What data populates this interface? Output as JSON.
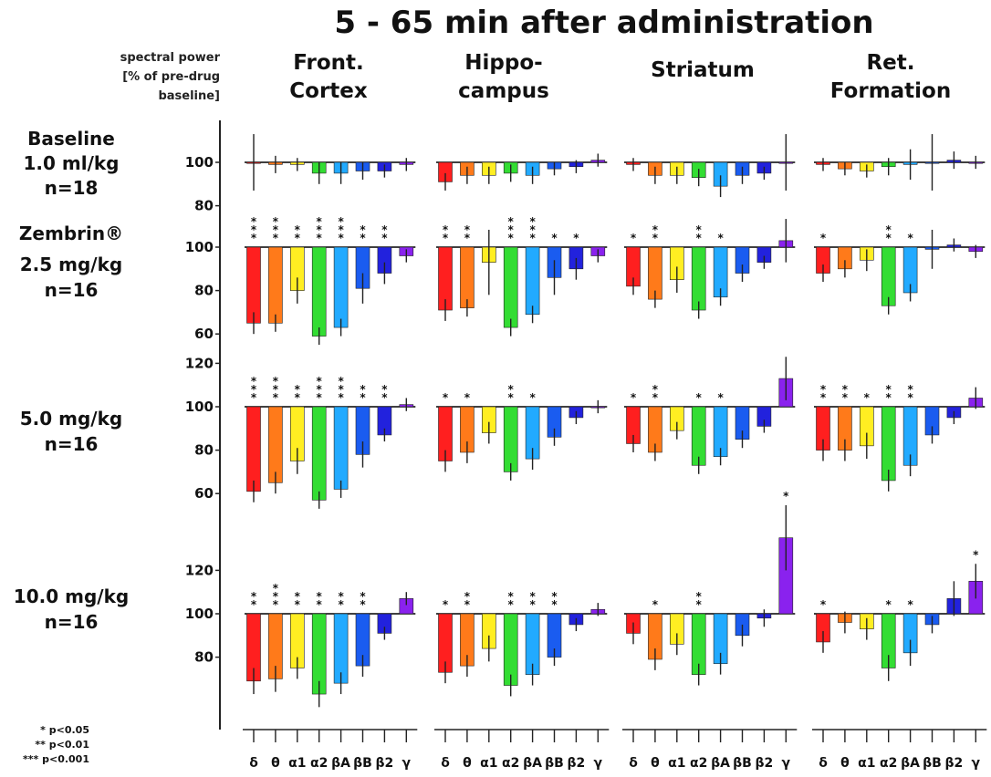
{
  "chart_data": {
    "type": "bar",
    "title": "5 - 65 min after administration",
    "ylabel": [
      "spectral power",
      "[% of pre-drug",
      "baseline]"
    ],
    "regions": [
      [
        "Front.",
        "Cortex"
      ],
      [
        "Hippo-",
        "campus"
      ],
      [
        "Striatum"
      ],
      [
        "Ret.",
        "Formation"
      ]
    ],
    "bands": [
      "δ",
      "θ",
      "α1",
      "α2",
      "βA",
      "βB",
      "β2",
      "γ"
    ],
    "band_colors": [
      "#ff1f1f",
      "#ff7a1a",
      "#ffee22",
      "#33dd33",
      "#22aaff",
      "#1a5cf0",
      "#2222dd",
      "#8a22ee"
    ],
    "rows": [
      {
        "label": [
          "Baseline",
          "1.0 ml/kg",
          "n=18"
        ],
        "ticks": [
          100,
          80
        ],
        "values": [
          [
            100,
            99,
            99,
            95,
            95,
            96,
            96,
            99
          ],
          [
            91,
            94,
            94,
            95,
            94,
            97,
            98,
            101
          ],
          [
            99,
            94,
            94,
            93,
            89,
            94,
            95,
            100
          ],
          [
            99,
            97,
            96,
            98,
            99,
            100,
            101,
            100
          ]
        ],
        "errors": [
          [
            13,
            4,
            3,
            5,
            5,
            4,
            3,
            3
          ],
          [
            4,
            4,
            4,
            4,
            4,
            3,
            3,
            3
          ],
          [
            3,
            4,
            4,
            4,
            5,
            4,
            3,
            13
          ],
          [
            3,
            3,
            3,
            4,
            7,
            13,
            4,
            3
          ]
        ],
        "sig": [
          [
            "",
            "",
            "",
            "",
            "",
            "",
            "",
            ""
          ],
          [
            "",
            "",
            "",
            "",
            "",
            "",
            "",
            ""
          ],
          [
            "",
            "",
            "",
            "",
            "",
            "",
            "",
            ""
          ],
          [
            "",
            "",
            "",
            "",
            "",
            "",
            "",
            ""
          ]
        ]
      },
      {
        "label": [
          "Zembrin®",
          "2.5 mg/kg",
          "n=16"
        ],
        "ticks": [
          100,
          80,
          60
        ],
        "values": [
          [
            65,
            65,
            80,
            59,
            63,
            81,
            88,
            96
          ],
          [
            71,
            72,
            93,
            63,
            69,
            86,
            90,
            96
          ],
          [
            82,
            76,
            85,
            71,
            77,
            88,
            93,
            103
          ],
          [
            88,
            90,
            94,
            73,
            79,
            99,
            101,
            98
          ]
        ],
        "errors": [
          [
            5,
            4,
            6,
            4,
            4,
            7,
            5,
            3
          ],
          [
            5,
            4,
            15,
            4,
            4,
            8,
            5,
            3
          ],
          [
            4,
            4,
            6,
            4,
            4,
            4,
            3,
            10
          ],
          [
            4,
            4,
            5,
            4,
            4,
            9,
            3,
            3
          ]
        ],
        "sig": [
          [
            "***",
            "***",
            "**",
            "***",
            "***",
            "**",
            "**",
            ""
          ],
          [
            "**",
            "**",
            "",
            "***",
            "***",
            "*",
            "*",
            ""
          ],
          [
            "*",
            "**",
            "",
            "**",
            "*",
            "",
            "",
            ""
          ],
          [
            "*",
            "",
            "",
            "**",
            "*",
            "",
            "",
            ""
          ]
        ]
      },
      {
        "label": [
          "5.0 mg/kg",
          "n=16"
        ],
        "ticks": [
          120,
          100,
          80,
          60
        ],
        "values": [
          [
            61,
            65,
            75,
            57,
            62,
            78,
            87,
            101
          ],
          [
            75,
            79,
            88,
            70,
            76,
            86,
            95,
            100
          ],
          [
            83,
            79,
            89,
            73,
            77,
            85,
            91,
            113
          ],
          [
            80,
            80,
            82,
            66,
            73,
            87,
            95,
            104
          ]
        ],
        "errors": [
          [
            5,
            5,
            6,
            4,
            4,
            6,
            3,
            3
          ],
          [
            5,
            5,
            5,
            4,
            5,
            4,
            3,
            3
          ],
          [
            4,
            4,
            4,
            4,
            4,
            4,
            3,
            10
          ],
          [
            5,
            5,
            6,
            5,
            5,
            4,
            3,
            5
          ]
        ],
        "sig": [
          [
            "***",
            "***",
            "**",
            "***",
            "***",
            "**",
            "**",
            ""
          ],
          [
            "*",
            "*",
            "",
            "**",
            "*",
            "",
            "",
            ""
          ],
          [
            "*",
            "**",
            "",
            "*",
            "*",
            "",
            "",
            ""
          ],
          [
            "**",
            "**",
            "*",
            "**",
            "**",
            "",
            "",
            ""
          ]
        ]
      },
      {
        "label": [
          "10.0 mg/kg",
          "n=16"
        ],
        "ticks": [
          120,
          100,
          80
        ],
        "values": [
          [
            69,
            70,
            75,
            63,
            68,
            76,
            91,
            107
          ],
          [
            73,
            76,
            84,
            67,
            72,
            80,
            95,
            102
          ],
          [
            91,
            79,
            86,
            72,
            77,
            90,
            98,
            135
          ],
          [
            87,
            96,
            93,
            75,
            82,
            95,
            107,
            115
          ]
        ],
        "errors": [
          [
            6,
            6,
            5,
            6,
            5,
            5,
            3,
            3
          ],
          [
            5,
            5,
            6,
            5,
            5,
            4,
            3,
            3
          ],
          [
            5,
            5,
            5,
            5,
            5,
            5,
            4,
            15
          ],
          [
            5,
            5,
            5,
            6,
            6,
            4,
            8,
            8
          ]
        ],
        "sig": [
          [
            "**",
            "***",
            "**",
            "**",
            "**",
            "**",
            "",
            ""
          ],
          [
            "*",
            "**",
            "",
            "**",
            "**",
            "**",
            "",
            ""
          ],
          [
            "",
            "*",
            "",
            "**",
            "",
            "",
            "",
            "*"
          ],
          [
            "*",
            "",
            "",
            "*",
            "*",
            "",
            "",
            "*"
          ]
        ]
      }
    ],
    "legend": [
      "* p<0.05",
      "** p<0.01",
      "*** p<0.001"
    ]
  }
}
